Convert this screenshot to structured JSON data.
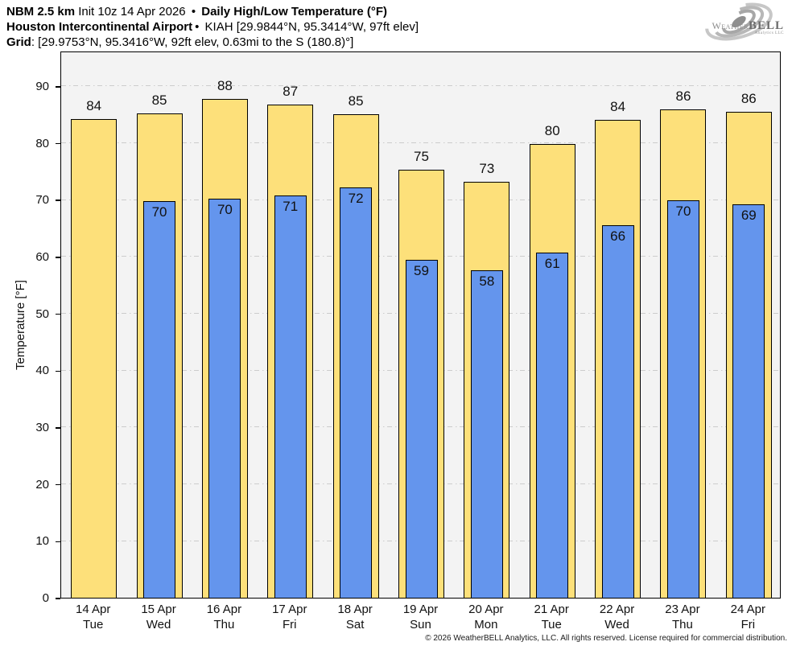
{
  "header": {
    "line1": {
      "bold1": "NBM 2.5 km",
      "regular1": " Init 10z 14 Apr 2026 ",
      "sep": "•",
      "bold2": " Daily High/Low Temperature (°F)"
    },
    "line2": {
      "bold": "Houston Intercontinental Airport",
      "sep": "•",
      "regular": " KIAH [29.9844°N, 95.3414°W, 97ft elev]"
    },
    "line3": {
      "bold": "Grid",
      "regular": ": [29.9753°N, 95.3416°W, 92ft elev, 0.63mi to the S (180.8)°]"
    }
  },
  "logo": {
    "weather": "Weather",
    "bell": "BELL",
    "subtext": "Analytics LLC"
  },
  "chart_data": {
    "type": "bar",
    "title": "Daily High/Low Temperature (°F)",
    "xlabel": "",
    "ylabel": "Temperature [°F]",
    "ylim": [
      0,
      96.2
    ],
    "yticks": [
      0,
      10,
      20,
      30,
      40,
      50,
      60,
      70,
      80,
      90
    ],
    "grid": true,
    "legend_position": "none",
    "categories": [
      "14 Apr",
      "15 Apr",
      "16 Apr",
      "17 Apr",
      "18 Apr",
      "19 Apr",
      "20 Apr",
      "21 Apr",
      "22 Apr",
      "23 Apr",
      "24 Apr"
    ],
    "weekdays": [
      "Tue",
      "Wed",
      "Thu",
      "Fri",
      "Sat",
      "Sun",
      "Mon",
      "Tue",
      "Wed",
      "Thu",
      "Fri"
    ],
    "series": [
      {
        "name": "Daily High",
        "color": "#FDE07A",
        "labels": [
          84,
          85,
          88,
          87,
          85,
          75,
          73,
          80,
          84,
          86,
          86
        ],
        "bar_values": [
          84.2,
          85.1,
          87.7,
          86.7,
          85.0,
          75.2,
          73.1,
          79.8,
          84.0,
          85.9,
          85.5
        ]
      },
      {
        "name": "Daily Low",
        "color": "#6495ED",
        "labels": [
          null,
          70,
          70,
          71,
          72,
          59,
          58,
          61,
          66,
          70,
          69
        ],
        "bar_values": [
          null,
          69.7,
          70.2,
          70.7,
          72.1,
          59.4,
          57.6,
          60.7,
          65.5,
          69.9,
          69.2
        ]
      }
    ]
  },
  "colors": {
    "plot_bg": "#F3F3F3",
    "gridline": "#CCCCCC",
    "frame": "#000000",
    "high_bar": "#FDE07A",
    "low_bar": "#6495ED"
  },
  "footer": {
    "copyright": "© 2026 WeatherBELL Analytics, LLC. All rights reserved. License required for commercial distribution."
  }
}
